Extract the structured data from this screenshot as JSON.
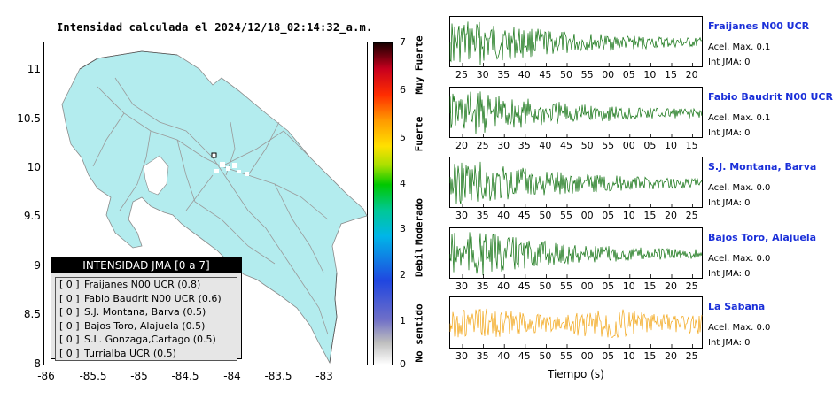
{
  "map": {
    "title": "Intensidad calculada el 2024/12/18_02:14:32_a.m.",
    "y_ticks": [
      "11",
      "10.5",
      "10",
      "9.5",
      "9",
      "8.5",
      "8"
    ],
    "x_ticks": [
      "-86",
      "-85.5",
      "-85",
      "-84.5",
      "-84",
      "-83.5",
      "-83"
    ]
  },
  "colorbar": {
    "ticks": [
      "7",
      "6",
      "5",
      "4",
      "3",
      "2",
      "1",
      "0"
    ],
    "categories": [
      "Muy Fuerte",
      "Fuerte",
      "Moderado",
      "Debil",
      "No sentido"
    ]
  },
  "legend": {
    "title": "INTENSIDAD JMA [0 a 7]",
    "rows": [
      {
        "tag": "[ 0 ]",
        "label": "Fraijanes N00 UCR (0.8)"
      },
      {
        "tag": "[ 0 ]",
        "label": "Fabio Baudrit N00 UCR (0.6)"
      },
      {
        "tag": "[ 0 ]",
        "label": "S.J. Montana, Barva (0.5)"
      },
      {
        "tag": "[ 0 ]",
        "label": "Bajos Toro, Alajuela (0.5)"
      },
      {
        "tag": "[ 0 ]",
        "label": "S.L. Gonzaga,Cartago (0.5)"
      },
      {
        "tag": "[ 0 ]",
        "label": "Turrialba UCR (0.5)"
      }
    ]
  },
  "stations": [
    {
      "name": "Fraijanes N00 UCR",
      "accel": "Acel. Max. 0.1",
      "jma": "Int JMA: 0",
      "color": "#0a6e0a",
      "ticks": [
        "25",
        "30",
        "35",
        "40",
        "45",
        "50",
        "55",
        "00",
        "05",
        "10",
        "15",
        "20"
      ]
    },
    {
      "name": "Fabio Baudrit N00 UCR",
      "accel": "Acel. Max. 0.1",
      "jma": "Int JMA: 0",
      "color": "#0a6e0a",
      "ticks": [
        "20",
        "25",
        "30",
        "35",
        "40",
        "45",
        "50",
        "55",
        "00",
        "05",
        "10",
        "15"
      ]
    },
    {
      "name": "S.J. Montana, Barva",
      "accel": "Acel. Max. 0.0",
      "jma": "Int JMA: 0",
      "color": "#0a6e0a",
      "ticks": [
        "30",
        "35",
        "40",
        "45",
        "50",
        "55",
        "00",
        "05",
        "10",
        "15",
        "20",
        "25"
      ]
    },
    {
      "name": "Bajos Toro, Alajuela",
      "accel": "Acel. Max. 0.0",
      "jma": "Int JMA: 0",
      "color": "#0a6e0a",
      "ticks": [
        "30",
        "35",
        "40",
        "45",
        "50",
        "55",
        "00",
        "05",
        "10",
        "15",
        "20",
        "25"
      ]
    },
    {
      "name": "La Sabana",
      "accel": "Acel. Max. 0.0",
      "jma": "Int JMA: 0",
      "color": "#f2a516",
      "ticks": [
        "30",
        "35",
        "40",
        "45",
        "50",
        "55",
        "00",
        "05",
        "10",
        "15",
        "20",
        "25"
      ]
    }
  ],
  "time_axis_label": "Tiempo (s)",
  "colors": {
    "land": "#b3ecee",
    "roads": "#9a9a9a",
    "trace_green": "#0a6e0a",
    "trace_orange": "#f2a516",
    "station_blue": "#1a2fd9"
  }
}
